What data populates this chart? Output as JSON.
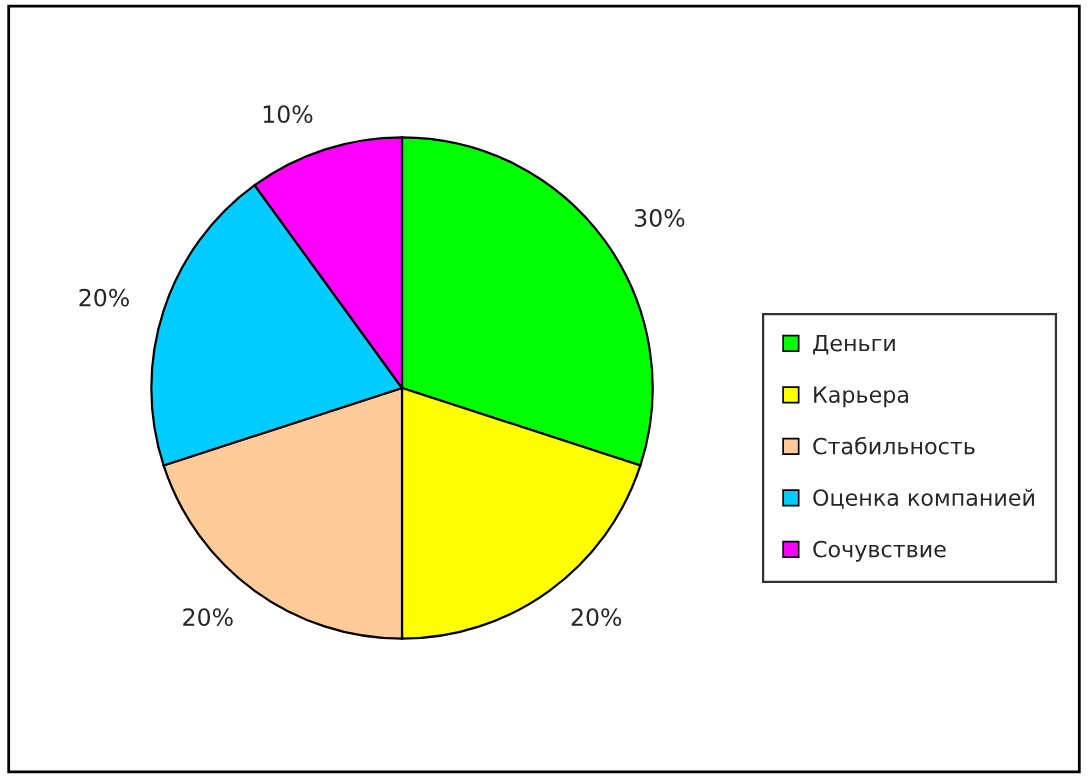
{
  "chart_data": {
    "type": "pie",
    "categories": [
      "Деньги",
      "Карьера",
      "Стабильность",
      "Оценка компанией",
      "Сочувствие"
    ],
    "values": [
      30,
      20,
      20,
      20,
      10
    ],
    "value_labels": [
      "30%",
      "20%",
      "20%",
      "20%",
      "10%"
    ],
    "colors": [
      "#00ff00",
      "#ffff00",
      "#ffcc99",
      "#00ccff",
      "#ff00ff"
    ],
    "legend": "right"
  }
}
